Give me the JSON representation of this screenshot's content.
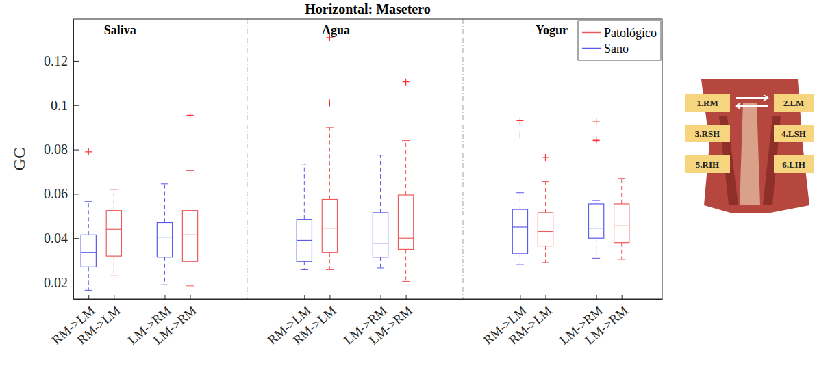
{
  "chart_data": {
    "type": "box",
    "title": "Horizontal: Masetero",
    "y_label": "GC",
    "groups": [
      "Saliva",
      "Agua",
      "Yogur"
    ],
    "categories": [
      "RM->LM",
      "LM->RM"
    ],
    "ylim": [
      0.0126,
      0.1388
    ],
    "yticks": [
      0.02,
      0.04,
      0.06,
      0.08,
      0.1,
      0.12
    ],
    "grid": false,
    "legend": "upper right",
    "series": [
      {
        "name": "Sano",
        "color": "#5a5aee",
        "values": [
          {
            "whisker_low": 0.0165,
            "q1": 0.027,
            "median": 0.0335,
            "q3": 0.0415,
            "whisker_high": 0.0565,
            "outliers": [
              0.079
            ]
          },
          {
            "whisker_low": 0.019,
            "q1": 0.0315,
            "median": 0.0405,
            "q3": 0.047,
            "whisker_high": 0.0645,
            "outliers": []
          },
          {
            "whisker_low": 0.026,
            "q1": 0.0295,
            "median": 0.039,
            "q3": 0.0485,
            "whisker_high": 0.0735,
            "outliers": []
          },
          {
            "whisker_low": 0.0265,
            "q1": 0.0315,
            "median": 0.0375,
            "q3": 0.0515,
            "whisker_high": 0.0775,
            "outliers": []
          },
          {
            "whisker_low": 0.028,
            "q1": 0.033,
            "median": 0.045,
            "q3": 0.053,
            "whisker_high": 0.0605,
            "outliers": [
              0.0865,
              0.093
            ]
          },
          {
            "whisker_low": 0.031,
            "q1": 0.04,
            "median": 0.0445,
            "q3": 0.0555,
            "whisker_high": 0.057,
            "outliers": [
              0.084,
              0.0845,
              0.0925
            ]
          }
        ]
      },
      {
        "name": "Patológico",
        "color": "#ee5a5a",
        "values": [
          {
            "whisker_low": 0.023,
            "q1": 0.032,
            "median": 0.044,
            "q3": 0.0525,
            "whisker_high": 0.062,
            "outliers": []
          },
          {
            "whisker_low": 0.0185,
            "q1": 0.0295,
            "median": 0.0415,
            "q3": 0.0525,
            "whisker_high": 0.0705,
            "outliers": [
              0.0955
            ]
          },
          {
            "whisker_low": 0.026,
            "q1": 0.0335,
            "median": 0.0445,
            "q3": 0.0575,
            "whisker_high": 0.09,
            "outliers": [
              0.101,
              0.1305
            ]
          },
          {
            "whisker_low": 0.0205,
            "q1": 0.035,
            "median": 0.04,
            "q3": 0.0595,
            "whisker_high": 0.084,
            "outliers": [
              0.1105
            ]
          },
          {
            "whisker_low": 0.029,
            "q1": 0.0365,
            "median": 0.043,
            "q3": 0.0515,
            "whisker_high": 0.0655,
            "outliers": [
              0.0765
            ]
          },
          {
            "whisker_low": 0.0305,
            "q1": 0.038,
            "median": 0.0455,
            "q3": 0.0555,
            "whisker_high": 0.067,
            "outliers": []
          }
        ]
      }
    ],
    "annotations": [
      "1.RM",
      "2.LM",
      "3.RSH",
      "4.LSH",
      "5.RIH",
      "6.LIH"
    ]
  }
}
